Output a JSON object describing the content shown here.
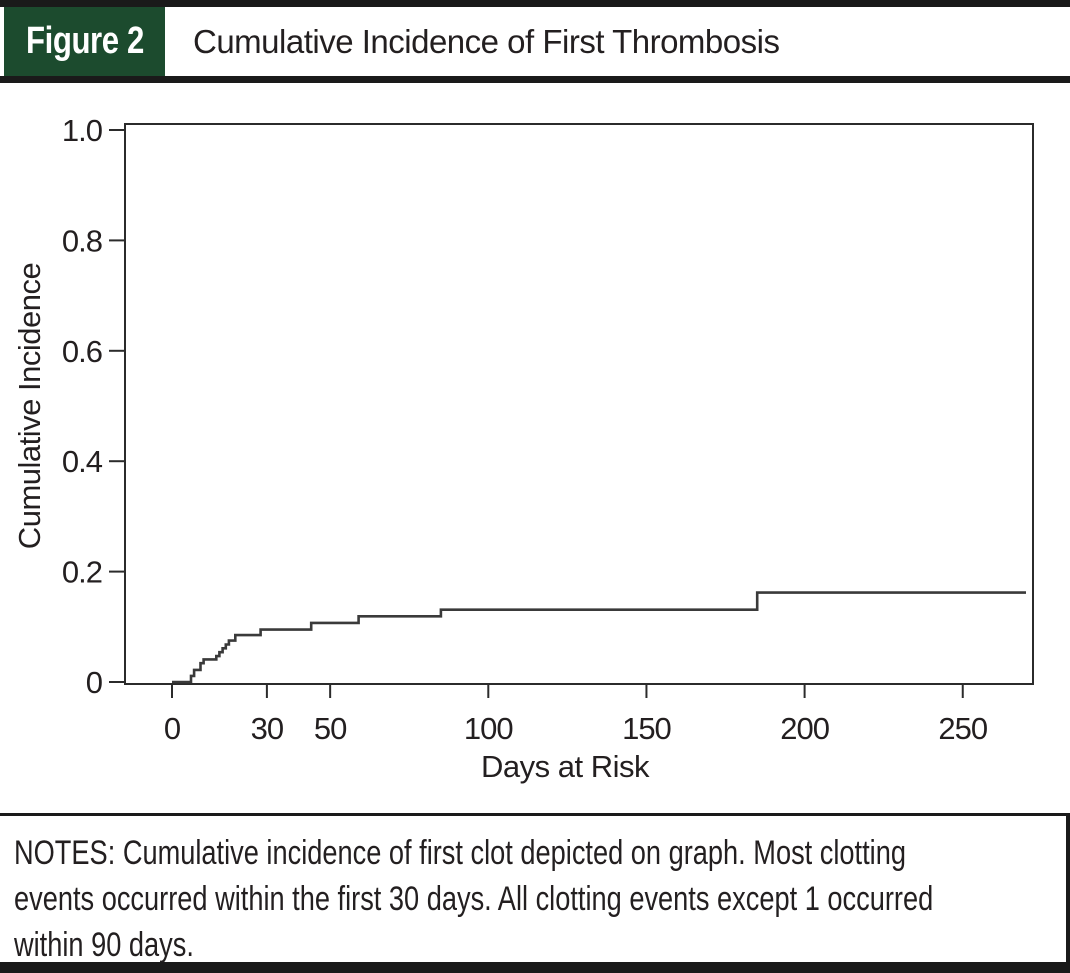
{
  "header": {
    "figure_label": "Figure 2",
    "title": "Cumulative Incidence of First Thrombosis"
  },
  "chart_data": {
    "type": "line",
    "subtype": "step",
    "title": "Cumulative Incidence of First Thrombosis",
    "xlabel": "Days at Risk",
    "ylabel": "Cumulative Incidence",
    "x_ticks": [
      "0",
      "30",
      "50",
      "100",
      "150",
      "200",
      "250"
    ],
    "y_ticks": [
      "0",
      "0.2",
      "0.4",
      "0.6",
      "0.8",
      "1.0"
    ],
    "xlim": [
      0,
      272
    ],
    "ylim": [
      0,
      1.0
    ],
    "grid": false,
    "legend": "none",
    "line_color": "#3a3a3a",
    "series": [
      {
        "name": "Cumulative incidence of first thrombosis",
        "steps": [
          [
            0,
            0
          ],
          [
            6,
            0.011
          ],
          [
            7,
            0.022
          ],
          [
            9,
            0.034
          ],
          [
            10,
            0.041
          ],
          [
            14,
            0.047
          ],
          [
            15,
            0.054
          ],
          [
            16,
            0.061
          ],
          [
            17,
            0.068
          ],
          [
            18,
            0.075
          ],
          [
            20,
            0.085
          ],
          [
            28,
            0.095
          ],
          [
            44,
            0.107
          ],
          [
            59,
            0.119
          ],
          [
            85,
            0.131
          ],
          [
            185,
            0.162
          ]
        ],
        "x_end": 270,
        "final_value": 0.162
      }
    ]
  },
  "notes": {
    "lines": [
      "NOTES: Cumulative incidence of first clot depicted on graph. Most clotting",
      "events occurred within the first 30 days. All clotting events except 1 occurred",
      "within 90 days."
    ]
  },
  "colors": {
    "header_green": "#1c4b2e",
    "rule_black": "#1a1a1a",
    "curve": "#3a3a3a",
    "text": "#231f20"
  }
}
